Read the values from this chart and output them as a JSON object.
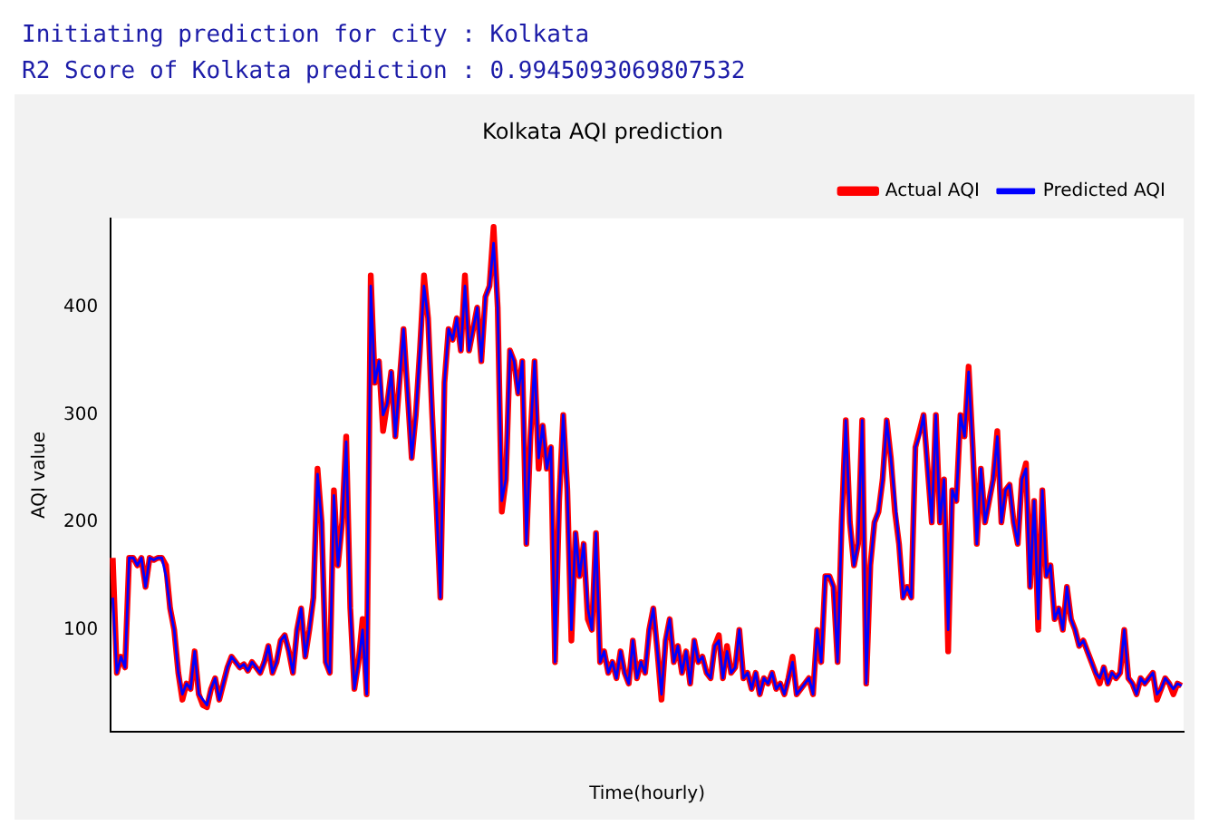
{
  "chart_data": {
    "type": "line",
    "title": "Kolkata AQI prediction",
    "xlabel": "Time(hourly)",
    "ylabel": "AQI value",
    "annotations": [
      "Initiating prediction for city : Kolkata",
      "R2 Score of Kolkata prediction : 0.9945093069807532"
    ],
    "categories": [
      null,
      null,
      null,
      null,
      null,
      null,
      null,
      null,
      null,
      null,
      null,
      null,
      null,
      null,
      null,
      null,
      null,
      null,
      null,
      null,
      null,
      null,
      null,
      null,
      null,
      null,
      null,
      null,
      null,
      null,
      null,
      null,
      null,
      null,
      null,
      null,
      null,
      null,
      null,
      null,
      null,
      null,
      null,
      null,
      null,
      null,
      null,
      null,
      null,
      null,
      null,
      null,
      null,
      null,
      null,
      null,
      null,
      null,
      null,
      null,
      null,
      null,
      null,
      null,
      null,
      null,
      null,
      null,
      null,
      null,
      null,
      null,
      null,
      null,
      null,
      null,
      null,
      null,
      null,
      null,
      null,
      null,
      null,
      null,
      null,
      null,
      null,
      null,
      null,
      null,
      null,
      null,
      null,
      null,
      null,
      null,
      null,
      null,
      null,
      null,
      null,
      null,
      null,
      null,
      null,
      null,
      null,
      null,
      null,
      null,
      null,
      null,
      null,
      null,
      null,
      null,
      null,
      null,
      null,
      null,
      null,
      null,
      null,
      null,
      null,
      null,
      null,
      null,
      null,
      null,
      null,
      null,
      null,
      null,
      null,
      null,
      null,
      null,
      null,
      null,
      null,
      null,
      null,
      null,
      null,
      null,
      null,
      null,
      null,
      null,
      null,
      null,
      null,
      null,
      null,
      null,
      null,
      null,
      null,
      null,
      null,
      null,
      null,
      null,
      null,
      null,
      null,
      null,
      null,
      null,
      null,
      null,
      null,
      null,
      null,
      null,
      null,
      null,
      null,
      null,
      null,
      null,
      null,
      null,
      null,
      null,
      null,
      null,
      null,
      null,
      null,
      null,
      null,
      null,
      null,
      null,
      null,
      null,
      null,
      null,
      null,
      null,
      null,
      null,
      null,
      null,
      null,
      null,
      null,
      null,
      null,
      null,
      null,
      null,
      null,
      null,
      null,
      null,
      null,
      null,
      null,
      null,
      null,
      null,
      null,
      null,
      null,
      null,
      null,
      null,
      null,
      null,
      null,
      null,
      null,
      null,
      null,
      null,
      null,
      null,
      null,
      null,
      null,
      null,
      null,
      null,
      null,
      null,
      null,
      null,
      null,
      null,
      null,
      null,
      null,
      null,
      null,
      null,
      null,
      null,
      null,
      null
    ],
    "series": [
      {
        "name": "Actual AQI",
        "color": "#ff0000",
        "values": [
          167,
          60,
          75,
          65,
          167,
          167,
          160,
          167,
          140,
          167,
          165,
          167,
          167,
          160,
          120,
          100,
          60,
          35,
          50,
          45,
          80,
          40,
          30,
          28,
          45,
          55,
          35,
          50,
          65,
          75,
          70,
          65,
          68,
          62,
          70,
          65,
          60,
          70,
          85,
          60,
          70,
          90,
          95,
          80,
          60,
          100,
          120,
          75,
          100,
          130,
          250,
          200,
          70,
          60,
          230,
          160,
          200,
          280,
          120,
          45,
          70,
          110,
          40,
          430,
          330,
          350,
          285,
          310,
          340,
          280,
          330,
          380,
          320,
          260,
          300,
          360,
          430,
          390,
          300,
          220,
          130,
          330,
          380,
          370,
          390,
          360,
          430,
          360,
          380,
          400,
          350,
          410,
          420,
          475,
          400,
          210,
          240,
          360,
          350,
          320,
          350,
          180,
          280,
          350,
          250,
          290,
          250,
          270,
          70,
          220,
          300,
          230,
          90,
          190,
          150,
          180,
          110,
          100,
          190,
          70,
          80,
          60,
          70,
          55,
          80,
          60,
          50,
          90,
          55,
          70,
          60,
          100,
          120,
          80,
          35,
          90,
          110,
          70,
          85,
          60,
          80,
          50,
          90,
          70,
          75,
          60,
          55,
          85,
          95,
          55,
          85,
          60,
          65,
          100,
          55,
          60,
          45,
          60,
          40,
          55,
          50,
          60,
          45,
          50,
          40,
          55,
          75,
          40,
          45,
          50,
          55,
          40,
          100,
          70,
          150,
          150,
          140,
          70,
          200,
          295,
          200,
          160,
          180,
          295,
          50,
          160,
          200,
          210,
          240,
          295,
          260,
          210,
          180,
          130,
          140,
          130,
          270,
          285,
          300,
          250,
          200,
          300,
          200,
          240,
          80,
          230,
          220,
          300,
          280,
          345,
          270,
          180,
          250,
          200,
          220,
          240,
          285,
          200,
          230,
          235,
          200,
          180,
          240,
          255,
          140,
          220,
          100,
          230,
          150,
          160,
          110,
          120,
          100,
          140,
          110,
          100,
          85,
          90,
          80,
          70,
          60,
          50,
          65,
          50,
          60,
          55,
          60,
          100,
          55,
          50,
          40,
          55,
          50,
          55,
          60,
          35,
          45,
          55,
          50,
          40,
          50,
          48
        ]
      },
      {
        "name": "Predicted AQI",
        "color": "#0000ff",
        "values": [
          130,
          60,
          75,
          65,
          167,
          167,
          160,
          167,
          140,
          167,
          165,
          167,
          167,
          150,
          120,
          100,
          60,
          40,
          50,
          45,
          80,
          40,
          35,
          30,
          45,
          55,
          35,
          50,
          65,
          75,
          70,
          65,
          68,
          62,
          70,
          65,
          60,
          70,
          85,
          60,
          70,
          90,
          95,
          80,
          60,
          100,
          120,
          75,
          100,
          130,
          245,
          200,
          70,
          60,
          225,
          160,
          200,
          275,
          120,
          45,
          70,
          100,
          40,
          420,
          330,
          350,
          300,
          310,
          340,
          280,
          330,
          380,
          320,
          260,
          300,
          360,
          420,
          390,
          300,
          220,
          130,
          330,
          380,
          370,
          390,
          360,
          420,
          360,
          380,
          400,
          350,
          410,
          420,
          460,
          400,
          220,
          240,
          360,
          350,
          320,
          350,
          180,
          280,
          350,
          260,
          290,
          250,
          270,
          70,
          220,
          300,
          230,
          100,
          190,
          150,
          180,
          120,
          100,
          190,
          70,
          80,
          60,
          70,
          55,
          80,
          60,
          50,
          90,
          55,
          70,
          60,
          100,
          120,
          80,
          40,
          90,
          110,
          70,
          85,
          60,
          80,
          50,
          90,
          70,
          75,
          60,
          55,
          85,
          90,
          55,
          80,
          60,
          65,
          100,
          55,
          60,
          45,
          60,
          40,
          55,
          50,
          60,
          45,
          50,
          40,
          55,
          70,
          40,
          45,
          50,
          55,
          40,
          100,
          70,
          150,
          150,
          140,
          70,
          200,
          295,
          200,
          160,
          180,
          295,
          50,
          160,
          200,
          210,
          240,
          295,
          260,
          220,
          180,
          130,
          140,
          130,
          270,
          280,
          300,
          250,
          200,
          300,
          200,
          240,
          100,
          230,
          220,
          300,
          280,
          340,
          270,
          180,
          250,
          200,
          220,
          240,
          280,
          200,
          230,
          235,
          200,
          180,
          240,
          250,
          140,
          220,
          110,
          230,
          150,
          160,
          110,
          120,
          100,
          140,
          110,
          100,
          85,
          90,
          80,
          70,
          60,
          55,
          65,
          50,
          60,
          55,
          60,
          100,
          55,
          50,
          40,
          55,
          50,
          55,
          60,
          40,
          45,
          55,
          50,
          45,
          50,
          48
        ]
      }
    ],
    "ylim": [
      5,
      483
    ],
    "yticks": [
      100,
      200,
      300,
      400
    ],
    "grid": false,
    "legend": "top right",
    "marker": "none",
    "line_style": "solid"
  }
}
